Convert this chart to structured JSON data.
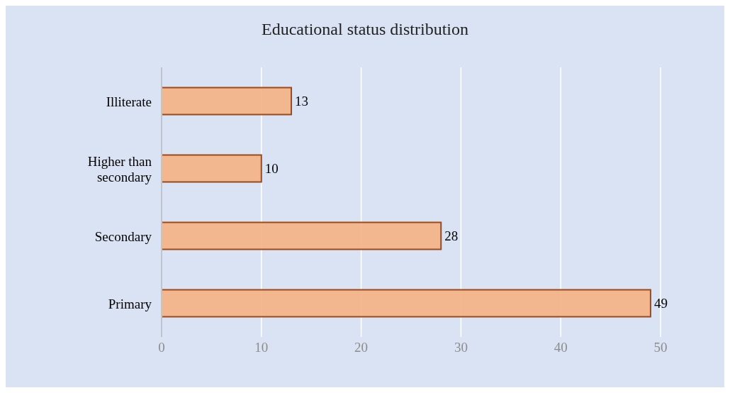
{
  "chart_data": {
    "type": "bar",
    "orientation": "horizontal",
    "title": "Educational status distribution",
    "categories": [
      "Illiterate",
      "Higher than secondary",
      "Secondary",
      "Primary"
    ],
    "values": [
      13,
      10,
      28,
      49
    ],
    "color": "#f4b183",
    "xlim": [
      0,
      50
    ],
    "xticks": [
      0,
      10,
      20,
      30,
      40,
      50
    ],
    "grid": "x",
    "data_labels": true
  }
}
